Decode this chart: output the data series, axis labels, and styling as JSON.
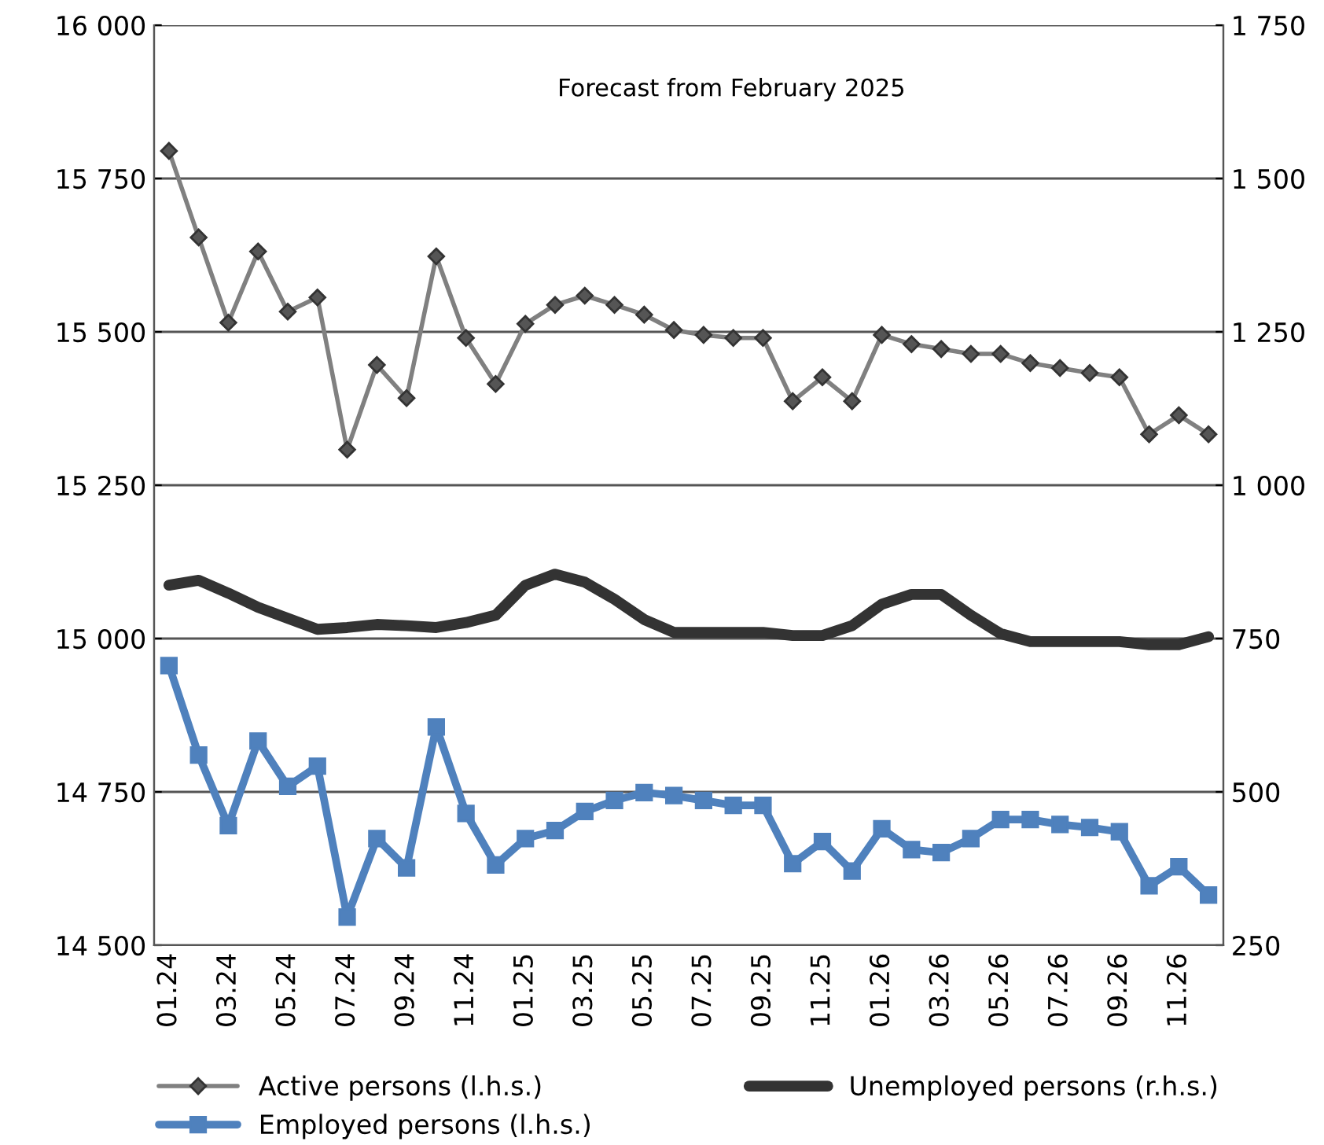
{
  "chart_data": {
    "type": "line",
    "categories": [
      "01.24",
      null,
      "03.24",
      null,
      "05.24",
      null,
      "07.24",
      null,
      "09.24",
      null,
      "11.24",
      null,
      "01.25",
      null,
      "03.25",
      null,
      "05.25",
      null,
      "07.25",
      null,
      "09.25",
      null,
      "11.25",
      null,
      "01.26",
      null,
      "03.26",
      null,
      "05.26",
      null,
      "07.26",
      null,
      "09.26",
      null,
      "11.26",
      null
    ],
    "series": [
      {
        "name": "Active persons (l.h.s.)",
        "color": "#808080",
        "marker": "diamond",
        "values": [
          15795,
          15654,
          15515,
          15631,
          15533,
          15556,
          15308,
          15446,
          15392,
          15623,
          15490,
          15415,
          15513,
          15544,
          15559,
          15544,
          15528,
          15503,
          15495,
          15490,
          15490,
          15387,
          15426,
          15387,
          15495,
          15480,
          15472,
          15464,
          15464,
          15449,
          15441,
          15433,
          15426,
          15333,
          15364,
          15333
        ]
      },
      {
        "name": "Employed persons (l.h.s.)",
        "color": "#4f81bd",
        "marker": "square",
        "values": [
          14956,
          14810,
          14695,
          14833,
          14759,
          14792,
          14546,
          14674,
          14626,
          14856,
          14715,
          14631,
          14674,
          14687,
          14718,
          14736,
          14749,
          14744,
          14736,
          14728,
          14728,
          14633,
          14669,
          14621,
          14690,
          14656,
          14651,
          14674,
          14705,
          14705,
          14697,
          14692,
          14685,
          14597,
          14628,
          14582
        ]
      },
      {
        "name": "Unemployed persons (r.h.s.)",
        "color": "#333333",
        "marker": "none",
        "axis": "y2",
        "values": [
          837,
          845,
          824,
          801,
          783,
          765,
          768,
          773,
          771,
          768,
          776,
          788,
          837,
          855,
          842,
          814,
          781,
          760,
          760,
          760,
          760,
          755,
          755,
          771,
          806,
          822,
          822,
          788,
          758,
          745,
          745,
          745,
          745,
          740,
          740,
          753
        ]
      }
    ],
    "ylim": [
      14500,
      16000
    ],
    "yticks": [
      {
        "value": 14500,
        "label": "14 500"
      },
      {
        "value": 14750,
        "label": "14 750"
      },
      {
        "value": 15000,
        "label": "15 000"
      },
      {
        "value": 15250,
        "label": "15 250"
      },
      {
        "value": 15500,
        "label": "15 500"
      },
      {
        "value": 15750,
        "label": "15 750"
      },
      {
        "value": 16000,
        "label": "16 000"
      }
    ],
    "y2lim": [
      250,
      1750
    ],
    "y2ticks": [
      250,
      500,
      750,
      {
        "value": 1000,
        "label": "1 000"
      },
      {
        "value": 1250,
        "label": "1 250"
      },
      {
        "value": 1500,
        "label": "1 500"
      },
      {
        "value": 1750,
        "label": "1 750"
      }
    ],
    "grid": "y",
    "legend": "bottom",
    "annotations": [
      "Forecast from February 2025"
    ]
  }
}
